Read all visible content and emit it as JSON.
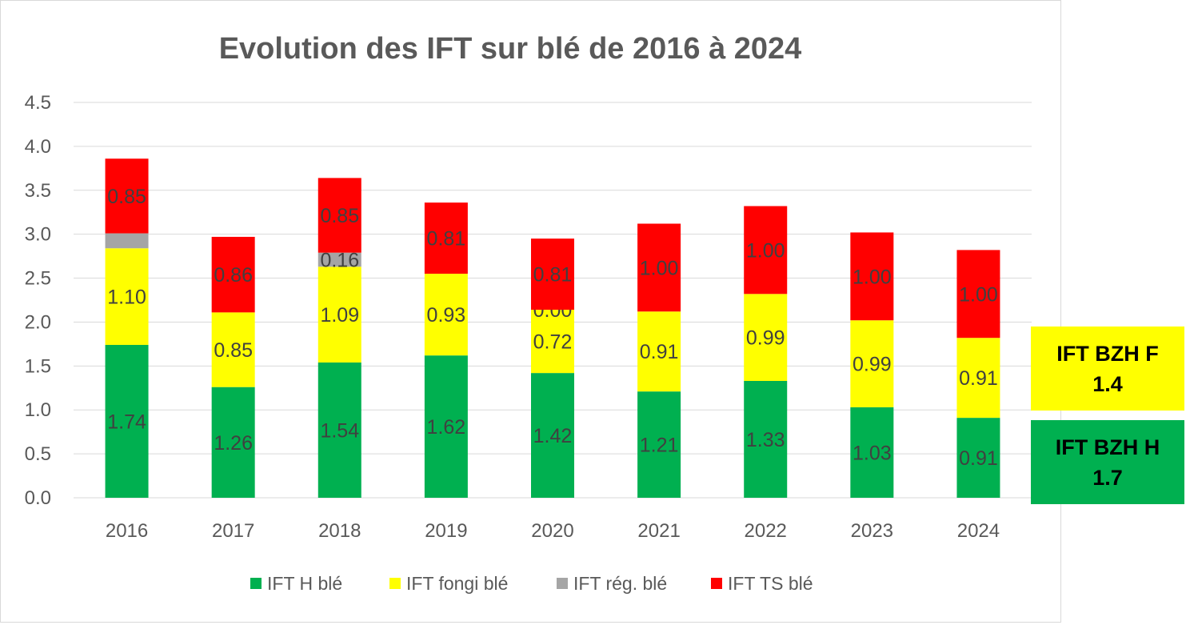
{
  "chart_data": {
    "type": "bar",
    "stacked": true,
    "title": "Evolution des IFT sur blé de 2016 à 2024",
    "xlabel": "",
    "ylabel": "",
    "ylim": [
      0,
      4.5
    ],
    "yticks": [
      "0.0",
      "0.5",
      "1.0",
      "1.5",
      "2.0",
      "2.5",
      "3.0",
      "3.5",
      "4.0",
      "4.5"
    ],
    "grid": true,
    "legend_position": "bottom",
    "categories": [
      "2016",
      "2017",
      "2018",
      "2019",
      "2020",
      "2021",
      "2022",
      "2023",
      "2024"
    ],
    "series": [
      {
        "name": "IFT H blé",
        "color": "#00b050",
        "values": [
          1.74,
          1.26,
          1.54,
          1.62,
          1.42,
          1.21,
          1.33,
          1.03,
          0.91
        ],
        "labels": [
          "1.74",
          "1.26",
          "1.54",
          "1.62",
          "1.42",
          "1.21",
          "1.33",
          "1.03",
          "0.91"
        ]
      },
      {
        "name": "IFT fongi blé",
        "color": "#ffff00",
        "values": [
          1.1,
          0.85,
          1.09,
          0.93,
          0.72,
          0.91,
          0.99,
          0.99,
          0.91
        ],
        "labels": [
          "1.10",
          "0.85",
          "1.09",
          "0.93",
          "0.72",
          "0.91",
          "0.99",
          "0.99",
          "0.91"
        ]
      },
      {
        "name": "IFT rég. blé",
        "color": "#a5a5a5",
        "values": [
          0.17,
          0,
          0.16,
          0,
          0,
          0,
          0,
          0,
          0
        ],
        "labels": [
          "",
          "",
          "0.16",
          "",
          "0.00",
          "",
          "",
          "",
          ""
        ]
      },
      {
        "name": "IFT TS blé",
        "color": "#ff0000",
        "values": [
          0.85,
          0.86,
          0.85,
          0.81,
          0.81,
          1.0,
          1.0,
          1.0,
          1.0
        ],
        "labels": [
          "0.85",
          "0.86",
          "0.85",
          "0.81",
          "0.81",
          "1.00",
          "1.00",
          "1.00",
          "1.00"
        ]
      }
    ]
  },
  "reference_boxes": {
    "f": {
      "label": "IFT BZH F",
      "value": "1.4",
      "color": "#ffff00"
    },
    "h": {
      "label": "IFT BZH H",
      "value": "1.7",
      "color": "#00b050"
    }
  }
}
